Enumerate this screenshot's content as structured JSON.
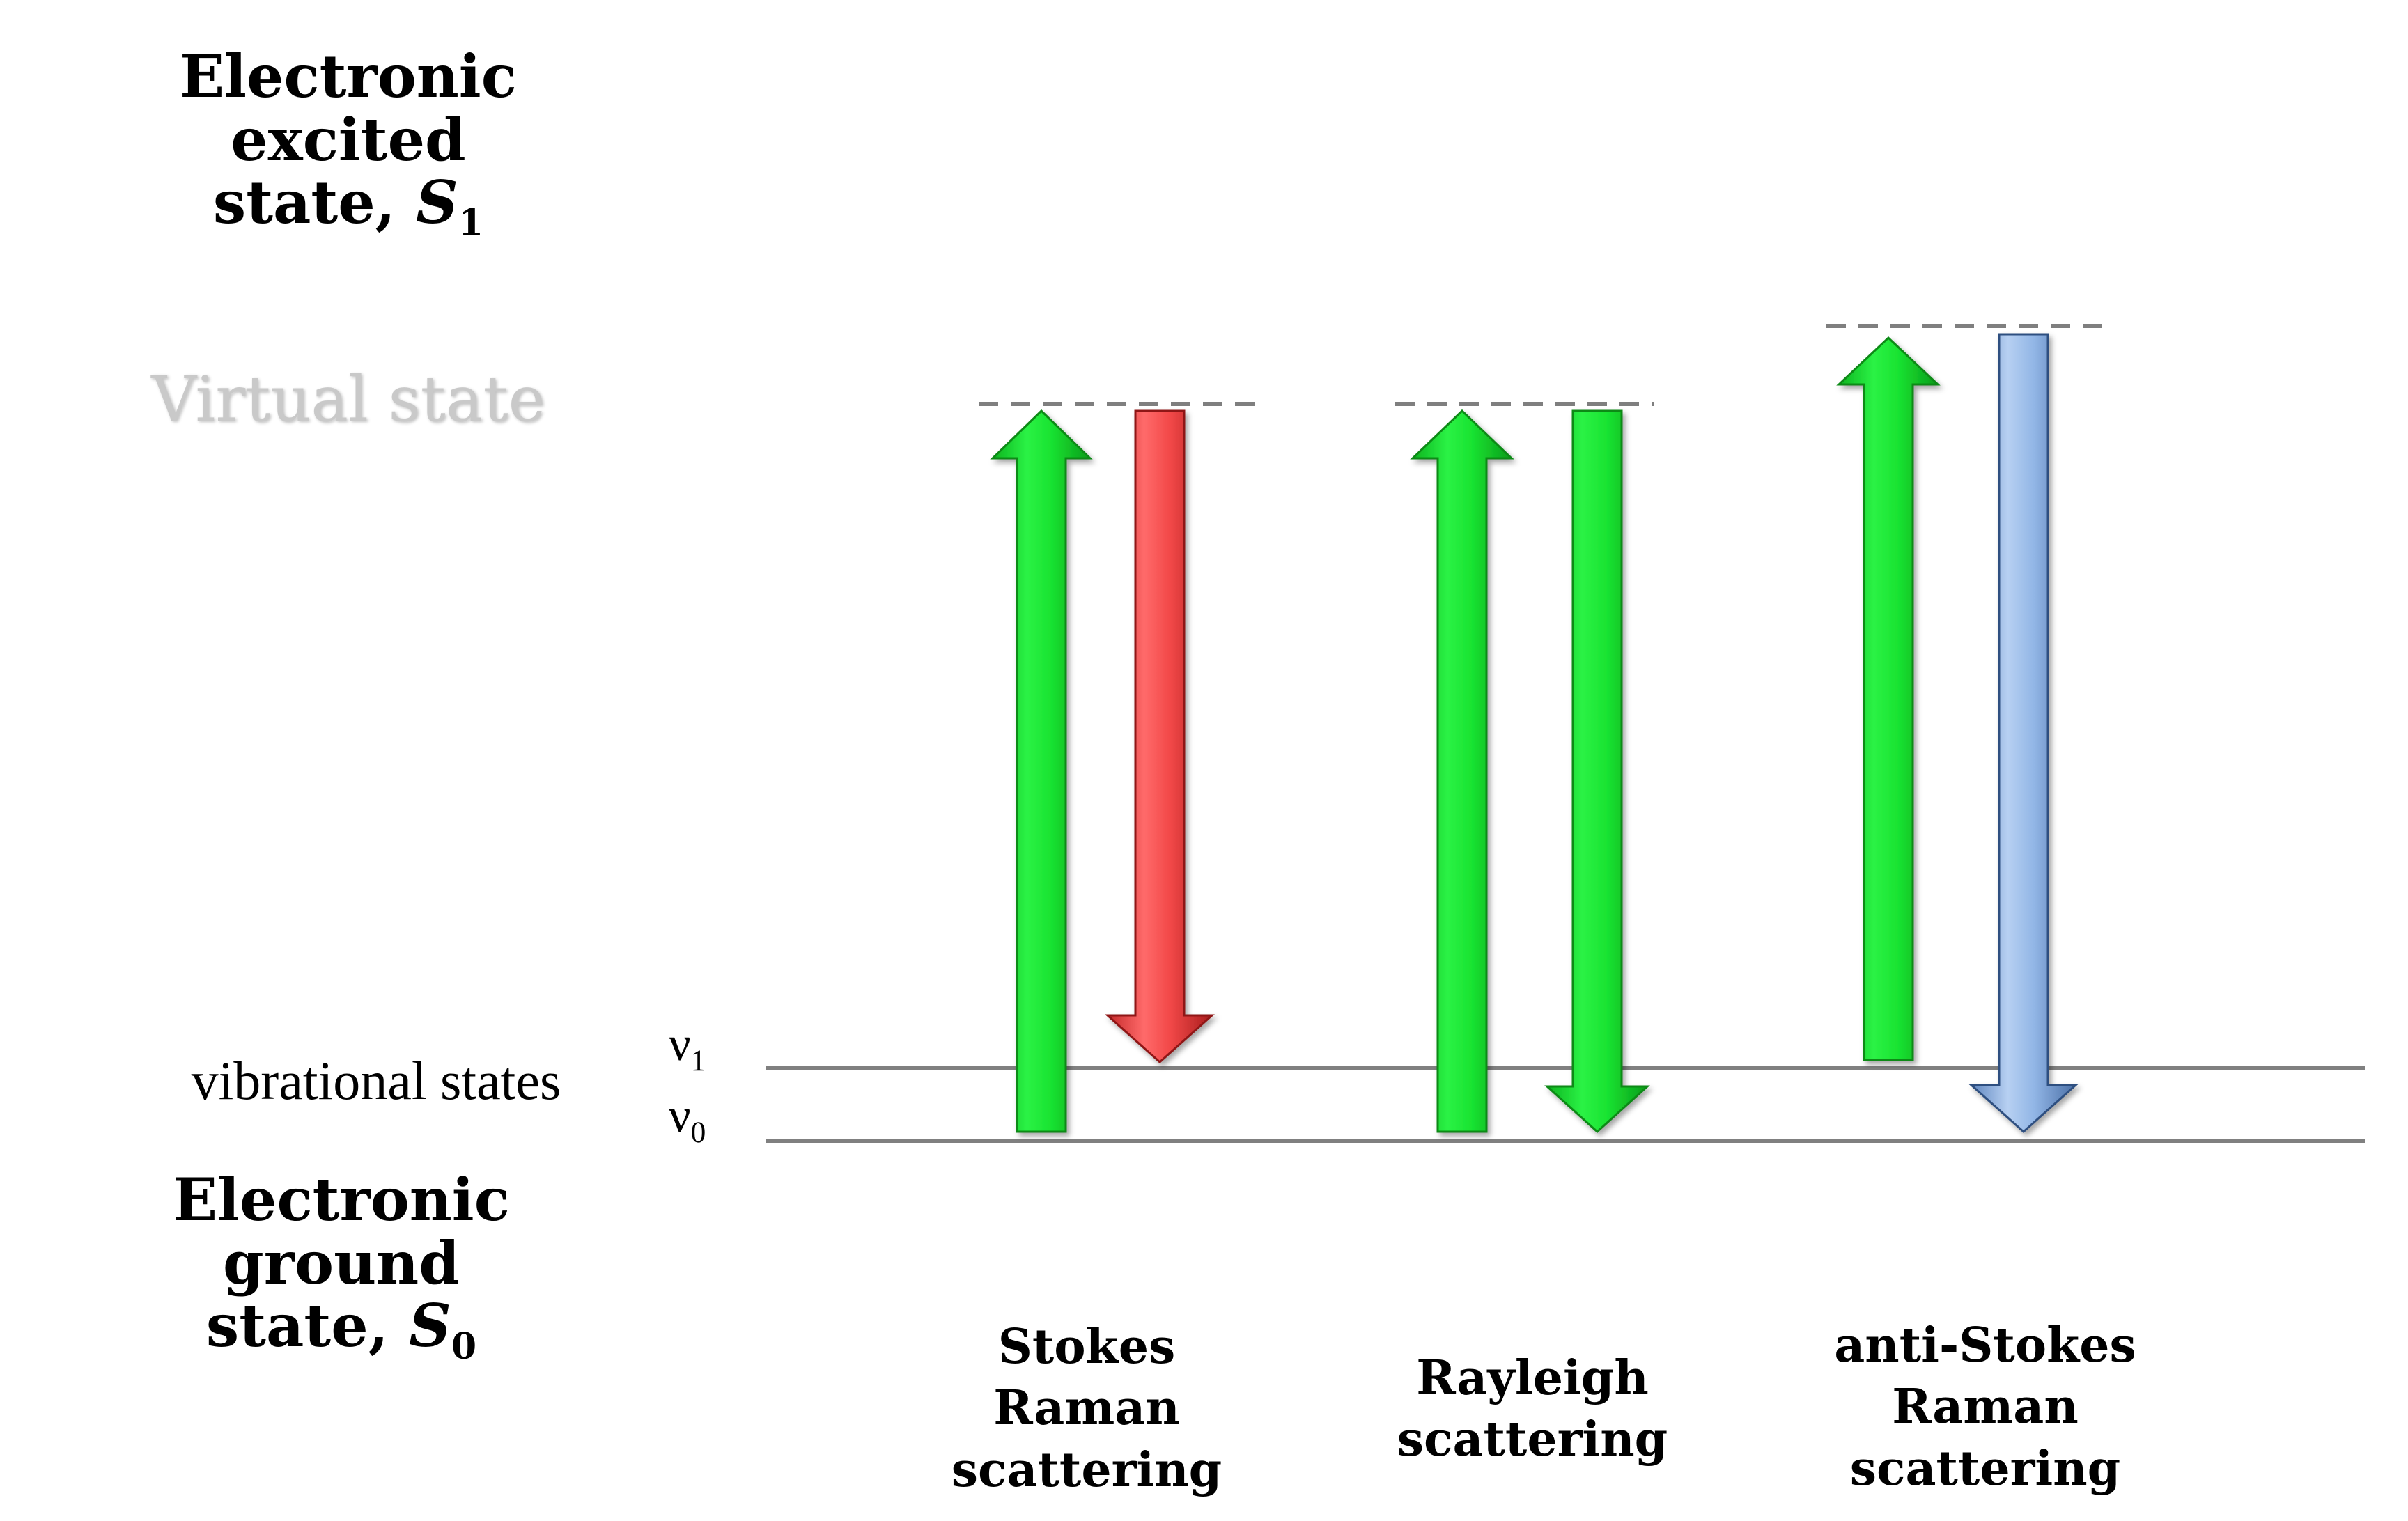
{
  "levels": {
    "excited_line1": "Electronic excited",
    "excited_line2": "state,",
    "excited_symbol": "S",
    "excited_sub": "1",
    "virtual": "Virtual state",
    "vibrational": "vibrational states",
    "nu1_symbol": "ν",
    "nu1_sub": "1",
    "nu0_symbol": "ν",
    "nu0_sub": "0",
    "ground_line1": "Electronic ground",
    "ground_line2": "state,",
    "ground_symbol": "S",
    "ground_sub": "0"
  },
  "processes": [
    {
      "lines": [
        "Stokes",
        "Raman",
        "scattering"
      ],
      "down_color": "red"
    },
    {
      "lines": [
        "Rayleigh",
        "scattering"
      ],
      "down_color": "green"
    },
    {
      "lines": [
        "anti-Stokes",
        "Raman",
        "scattering"
      ],
      "down_color": "blue"
    }
  ],
  "colors": {
    "excitation": "#14e02a",
    "stokes": "#f24444",
    "rayleigh": "#14e02a",
    "anti_stokes": "#8fb4e6",
    "level_line": "#000000",
    "vib_line": "#808080",
    "virtual_dash": "#7f7f7f"
  }
}
